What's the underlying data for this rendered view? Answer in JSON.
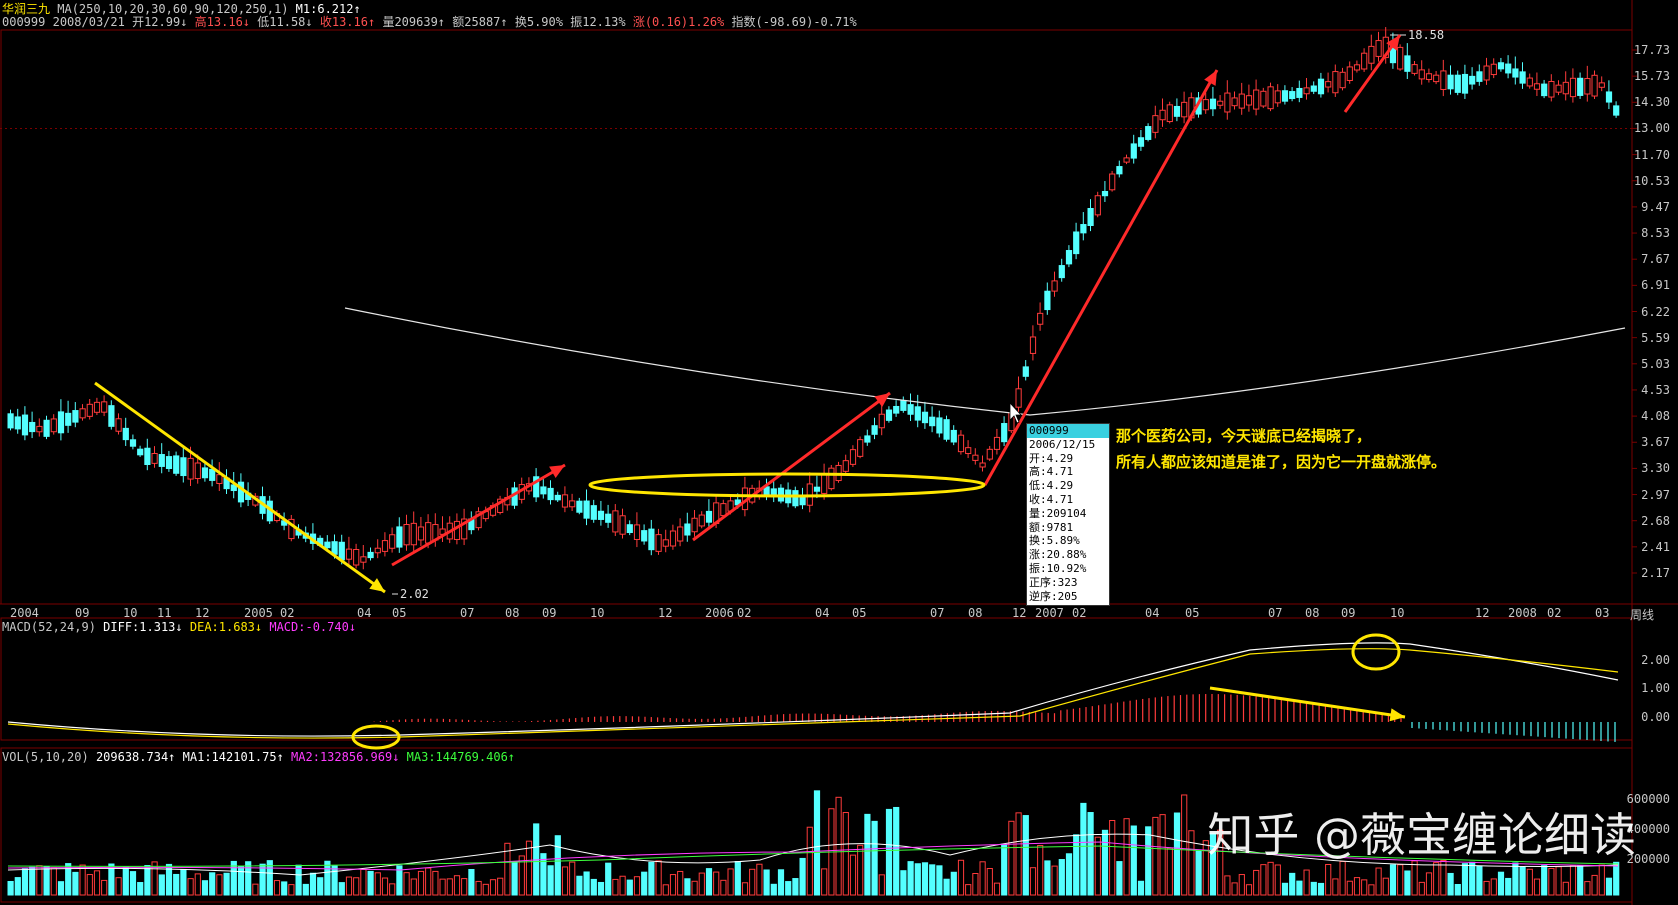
{
  "stock": {
    "name": "华润三九",
    "ma_params": "MA(250,10,20,30,60,90,120,250,1)",
    "m1": "M1:6.212↑",
    "code": "000999",
    "date": "2008/03/21",
    "open": "开12.99↓",
    "high": "高13.16↓",
    "low": "低11.58↓",
    "close": "收13.16↑",
    "volume": "量209639↑",
    "amount": "额25887↑",
    "turnover": "换5.90%",
    "amplitude": "振12.13%",
    "change": "涨(0.16)1.26%",
    "index_change": "指数(-98.69)-0.71%"
  },
  "price_axis": [
    "17.73",
    "15.73",
    "14.30",
    "13.00",
    "11.70",
    "10.53",
    "9.47",
    "8.53",
    "7.67",
    "6.91",
    "6.22",
    "5.59",
    "5.03",
    "4.53",
    "4.08",
    "3.67",
    "3.30",
    "2.97",
    "2.68",
    "2.41",
    "2.17"
  ],
  "time_axis": [
    "2004",
    "09",
    "10",
    "11",
    "12",
    "2005",
    "02",
    "04",
    "05",
    "07",
    "08",
    "09",
    "10",
    "12",
    "2006",
    "02",
    "04",
    "05",
    "07",
    "08",
    "12",
    "2007",
    "02",
    "04",
    "05",
    "07",
    "08",
    "09",
    "10",
    "12",
    "2008",
    "02",
    "03",
    "周线"
  ],
  "price_labels": {
    "high": "18.58",
    "low": "2.02"
  },
  "macd": {
    "label": "MACD(52,24,9)",
    "diff": "DIFF:1.313↓",
    "dea": "DEA:1.683↓",
    "macd": "MACD:-0.740↓",
    "axis": [
      "2.00",
      "1.00",
      "0.00"
    ]
  },
  "vol": {
    "label": "VOL(5,10,20)",
    "value": "209638.734↑",
    "ma1": "MA1:142101.75↑",
    "ma2": "MA2:132856.969↓",
    "ma3": "MA3:144769.406↑",
    "axis": [
      "600000",
      "400000",
      "200000"
    ]
  },
  "tooltip": {
    "code": "000999",
    "date": "2006/12/15",
    "lines": [
      "开:4.29",
      "高:4.71",
      "低:4.29",
      "收:4.71",
      "量:209104",
      "额:9781",
      "换:5.89%",
      "涨:20.88%",
      "振:10.92%",
      "正序:323",
      "逆序:205"
    ]
  },
  "annotation": {
    "line1": "那个医药公司，今天谜底已经揭晓了，",
    "line2": "所有人都应该知道是谁了，因为它一开盘就涨停。"
  },
  "watermark": "知乎 @薇宝缠论细读",
  "colors": {
    "up": "#ff3b3b",
    "down": "#54ffff",
    "ma": "#e6e6e6",
    "arrow_red": "#ff2a2a",
    "arrow_yellow": "#ffe600",
    "grid": "#7a0000"
  }
}
